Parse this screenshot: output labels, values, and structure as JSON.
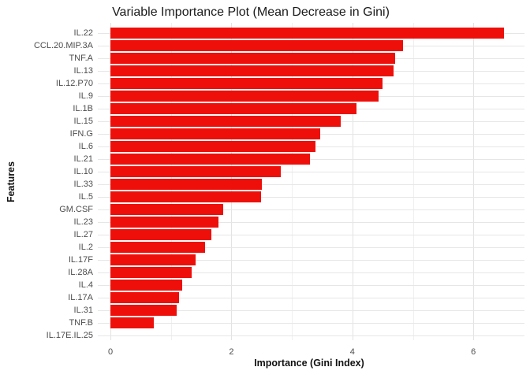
{
  "chart_data": {
    "type": "bar",
    "orientation": "horizontal",
    "title": "Variable Importance Plot (Mean Decrease in Gini)",
    "xlabel": "Importance (Gini Index)",
    "ylabel": "Features",
    "categories": [
      "IL.22",
      "CCL.20.MIP.3A",
      "TNF.A",
      "IL.13",
      "IL.12.P70",
      "IL.9",
      "IL.1B",
      "IL.15",
      "IFN.G",
      "IL.6",
      "IL.21",
      "IL.10",
      "IL.33",
      "IL.5",
      "GM.CSF",
      "IL.23",
      "IL.27",
      "IL.2",
      "IL.17F",
      "IL.28A",
      "IL.4",
      "IL.17A",
      "IL.31",
      "TNF.B",
      "IL.17E.IL.25"
    ],
    "values": [
      6.51,
      4.84,
      4.71,
      4.68,
      4.5,
      4.43,
      4.07,
      3.81,
      3.47,
      3.39,
      3.3,
      2.82,
      2.5,
      2.49,
      1.86,
      1.79,
      1.67,
      1.57,
      1.41,
      1.34,
      1.18,
      1.13,
      1.09,
      0.72,
      0
    ],
    "xlim": [
      0,
      6.85
    ],
    "x_major_ticks": [
      0,
      2,
      4,
      6
    ],
    "x_minor_ticks": [
      1,
      3,
      5
    ],
    "bar_color": "#ee0f0a",
    "grid": true,
    "legend_position": "none",
    "sorted": "descending"
  }
}
